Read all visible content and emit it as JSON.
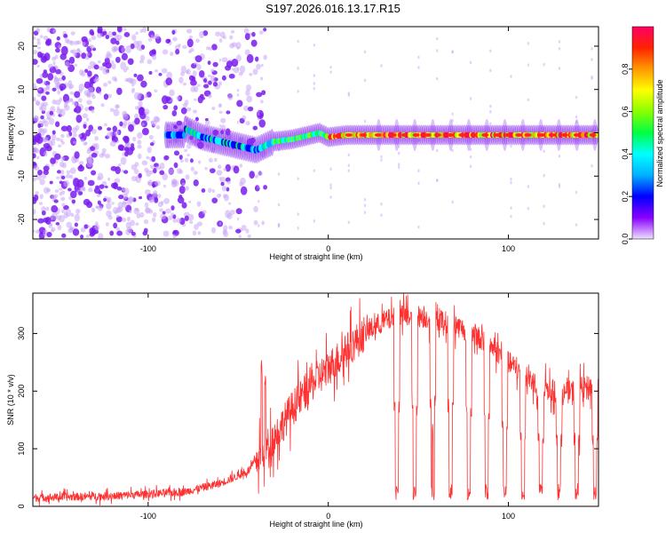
{
  "page_title": "S197.2026.016.13.17.R15",
  "chart_data": [
    {
      "type": "heatmap",
      "title": "S197.2026.016.13.17.R15",
      "xlabel": "Height of straight line (km)",
      "ylabel": "Frequency (Hz)",
      "xlim": [
        -164,
        150
      ],
      "ylim": [
        -24.5,
        24.5
      ],
      "xticks": [
        -100,
        0,
        100
      ],
      "yticks": [
        -20,
        -10,
        0,
        10,
        20
      ],
      "xtick_labels": [
        "-100",
        "0",
        "100"
      ],
      "ytick_labels": [
        "-20",
        "-10",
        "0",
        "10",
        "20"
      ],
      "colorbar": {
        "label": "Normalized spectral amplitude",
        "range": [
          0,
          1
        ],
        "ticks": [
          0.0,
          0.2,
          0.4,
          0.6,
          0.8
        ],
        "tick_labels": [
          "0.0",
          "0.2",
          "0.4",
          "0.6",
          "0.8"
        ],
        "colors": [
          "#f0e0ff",
          "#8800ff",
          "#0000ff",
          "#00b0ff",
          "#00ffff",
          "#00ff44",
          "#88ff00",
          "#ffff00",
          "#ff9900",
          "#ff2200",
          "#ff0066"
        ]
      },
      "description_points": {
        "noise_region_km": [
          -164,
          -35
        ],
        "signal_onset_km": -35,
        "trace_frequency_hz": [
          [
            -80,
            1
          ],
          [
            -70,
            -1
          ],
          [
            -60,
            -2
          ],
          [
            -50,
            -3
          ],
          [
            -40,
            -4
          ],
          [
            -30,
            -2
          ],
          [
            -20,
            -1.5
          ],
          [
            -10,
            -0.5
          ],
          [
            -5,
            0
          ],
          [
            0,
            -1
          ],
          [
            10,
            -0.5
          ],
          [
            50,
            -0.5
          ],
          [
            100,
            -0.5
          ],
          [
            150,
            -0.5
          ]
        ]
      }
    },
    {
      "type": "line",
      "xlabel": "Height of straight line (km)",
      "ylabel": "SNR (10 * v/v)",
      "xlim": [
        -164,
        150
      ],
      "ylim": [
        0,
        370
      ],
      "xticks": [
        -100,
        0,
        100
      ],
      "yticks": [
        0,
        100,
        200,
        300
      ],
      "xtick_labels": [
        "-100",
        "0",
        "100"
      ],
      "ytick_labels": [
        "0",
        "100",
        "200",
        "300"
      ],
      "series_color": "#ff3030",
      "envelope": [
        [
          -164,
          15
        ],
        [
          -120,
          18
        ],
        [
          -80,
          25
        ],
        [
          -60,
          40
        ],
        [
          -45,
          60
        ],
        [
          -40,
          80
        ],
        [
          -30,
          120
        ],
        [
          -20,
          170
        ],
        [
          -10,
          210
        ],
        [
          0,
          240
        ],
        [
          10,
          270
        ],
        [
          20,
          300
        ],
        [
          30,
          320
        ],
        [
          40,
          330
        ],
        [
          50,
          330
        ],
        [
          60,
          325
        ],
        [
          70,
          315
        ],
        [
          80,
          300
        ],
        [
          90,
          280
        ],
        [
          100,
          250
        ],
        [
          110,
          225
        ],
        [
          120,
          205
        ],
        [
          130,
          195
        ],
        [
          140,
          205
        ],
        [
          150,
          210
        ]
      ],
      "dropouts_km": [
        38,
        48,
        58,
        68,
        78,
        88,
        98,
        108,
        118,
        128,
        138,
        148
      ],
      "spikes_km": [
        [
          -37,
          260
        ],
        [
          -35,
          230
        ],
        [
          116,
          195
        ],
        [
          58,
          150
        ]
      ]
    }
  ]
}
